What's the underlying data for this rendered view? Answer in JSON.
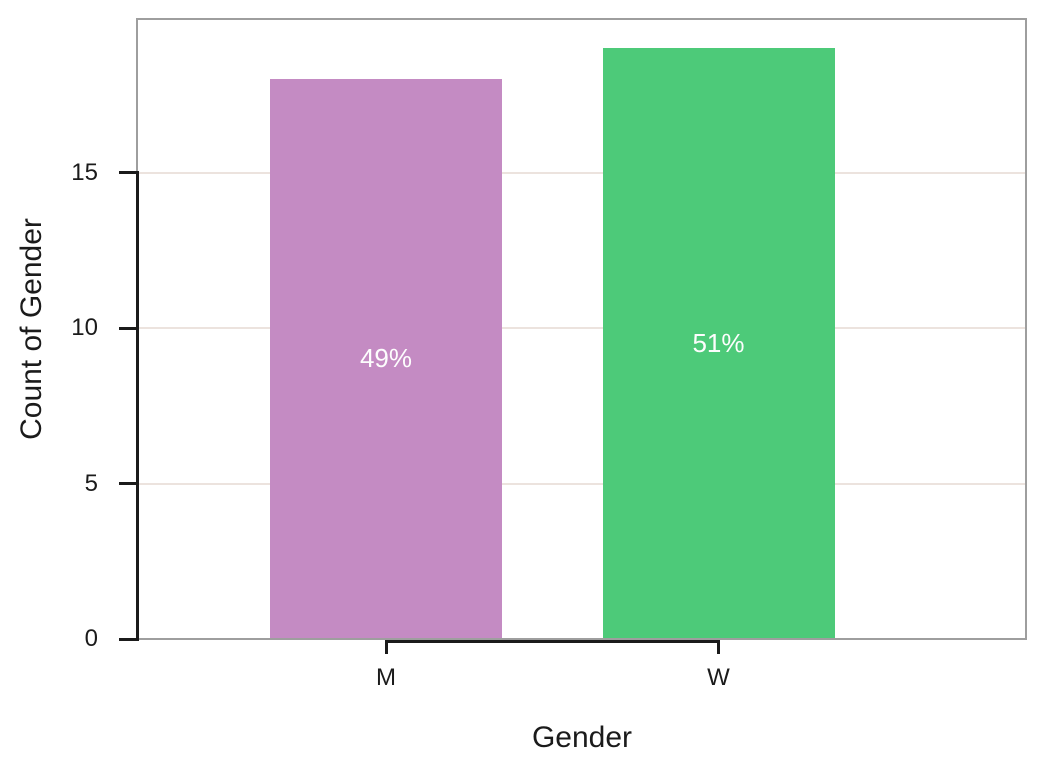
{
  "chart_data": {
    "type": "bar",
    "title": "",
    "categories": [
      "M",
      "W"
    ],
    "values": [
      18,
      19
    ],
    "bar_labels": [
      "49%",
      "51%"
    ],
    "xlabel": "Gender",
    "ylabel": "Count of Gender",
    "ylim": [
      0,
      20
    ],
    "yticks": [
      0,
      5,
      10,
      15
    ],
    "grid": "horizontal gridlines at yticks, behind bars",
    "legend": "none",
    "colors": {
      "bar_m": "#c48bc3",
      "bar_w": "#4dca79",
      "bar_label_text": "#fdfdfd",
      "gridline": "#ece3de",
      "panel_border": "#9e9e9e",
      "axis_line": "#1b1b1b",
      "text": "#1b1b1b",
      "background": "#ffffff"
    }
  }
}
